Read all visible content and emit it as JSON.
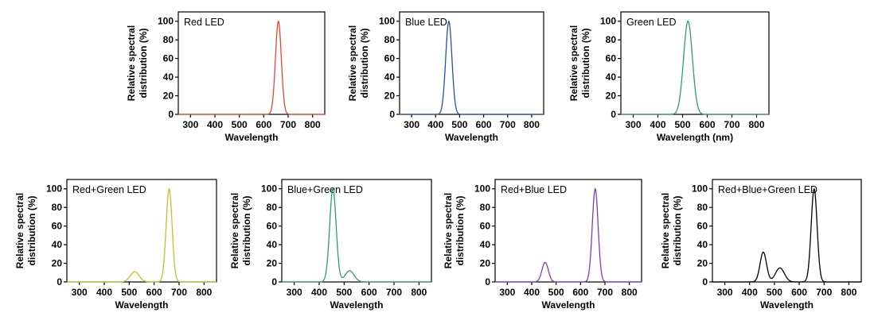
{
  "chart_data": [
    {
      "type": "line",
      "title": "Red LED",
      "xlabel": "Wavelength",
      "ylabel": [
        "Relative spectral",
        "distribution (%)"
      ],
      "xlim": [
        250,
        850
      ],
      "ylim": [
        0,
        110
      ],
      "xticks": [
        "300",
        "400",
        "500",
        "600",
        "700",
        "800"
      ],
      "yticks": [
        "0",
        "20",
        "40",
        "60",
        "80",
        "100"
      ],
      "color": "#e8472a",
      "peaks": [
        {
          "center": 660,
          "height": 100,
          "width": 12
        }
      ]
    },
    {
      "type": "line",
      "title": "Blue LED",
      "xlabel": "Wavelength",
      "ylabel": [
        "Relative spectral",
        "distribution (%)"
      ],
      "xlim": [
        250,
        850
      ],
      "ylim": [
        0,
        110
      ],
      "xticks": [
        "300",
        "400",
        "500",
        "600",
        "700",
        "800"
      ],
      "yticks": [
        "0",
        "20",
        "40",
        "60",
        "80",
        "100"
      ],
      "color": "#2a4fa8",
      "peaks": [
        {
          "center": 455,
          "height": 100,
          "width": 13
        }
      ]
    },
    {
      "type": "line",
      "title": "Green LED",
      "xlabel": "Wavelength (nm)",
      "ylabel": [
        "Relative spectral",
        "distribution (%)"
      ],
      "xlim": [
        250,
        850
      ],
      "ylim": [
        0,
        110
      ],
      "xticks": [
        "300",
        "400",
        "500",
        "600",
        "700",
        "800"
      ],
      "yticks": [
        "0",
        "20",
        "40",
        "60",
        "80",
        "100"
      ],
      "color": "#2aa06a",
      "peaks": [
        {
          "center": 522,
          "height": 100,
          "width": 18
        }
      ]
    },
    {
      "type": "line",
      "title": "Red+Green LED",
      "xlabel": "Wavelength",
      "ylabel": [
        "Relative spectral",
        "distribution (%)"
      ],
      "xlim": [
        250,
        850
      ],
      "ylim": [
        0,
        110
      ],
      "xticks": [
        "300",
        "400",
        "500",
        "600",
        "700",
        "800"
      ],
      "yticks": [
        "0",
        "20",
        "40",
        "60",
        "80",
        "100"
      ],
      "color": "#bcc42a",
      "peaks": [
        {
          "center": 522,
          "height": 11,
          "width": 18
        },
        {
          "center": 660,
          "height": 100,
          "width": 12
        }
      ]
    },
    {
      "type": "line",
      "title": "Blue+Green LED",
      "xlabel": "Wavelength",
      "ylabel": [
        "Relative spectral",
        "distribution (%)"
      ],
      "xlim": [
        250,
        850
      ],
      "ylim": [
        0,
        110
      ],
      "xticks": [
        "300",
        "400",
        "500",
        "600",
        "700",
        "800"
      ],
      "yticks": [
        "0",
        "20",
        "40",
        "60",
        "80",
        "100"
      ],
      "color": "#2aa06a",
      "peaks": [
        {
          "center": 455,
          "height": 100,
          "width": 13
        },
        {
          "center": 522,
          "height": 12,
          "width": 18
        }
      ]
    },
    {
      "type": "line",
      "title": "Red+Blue LED",
      "xlabel": "Wavelength",
      "ylabel": [
        "Relative spectral",
        "distribution (%)"
      ],
      "xlim": [
        250,
        850
      ],
      "ylim": [
        0,
        110
      ],
      "xticks": [
        "300",
        "400",
        "500",
        "600",
        "700",
        "800"
      ],
      "yticks": [
        "0",
        "20",
        "40",
        "60",
        "80",
        "100"
      ],
      "color": "#7a3fb8",
      "peaks": [
        {
          "center": 455,
          "height": 21,
          "width": 13
        },
        {
          "center": 660,
          "height": 100,
          "width": 12
        }
      ]
    },
    {
      "type": "line",
      "title": "Red+Blue+Green LED",
      "xlabel": "Wavelength",
      "ylabel": [
        "Relative spectral",
        "distribution (%)"
      ],
      "xlim": [
        250,
        850
      ],
      "ylim": [
        0,
        110
      ],
      "xticks": [
        "300",
        "400",
        "500",
        "600",
        "700",
        "800"
      ],
      "yticks": [
        "0",
        "20",
        "40",
        "60",
        "80",
        "100"
      ],
      "color": "#000000",
      "peaks": [
        {
          "center": 455,
          "height": 32,
          "width": 13
        },
        {
          "center": 522,
          "height": 15,
          "width": 18
        },
        {
          "center": 660,
          "height": 100,
          "width": 12
        }
      ]
    }
  ]
}
